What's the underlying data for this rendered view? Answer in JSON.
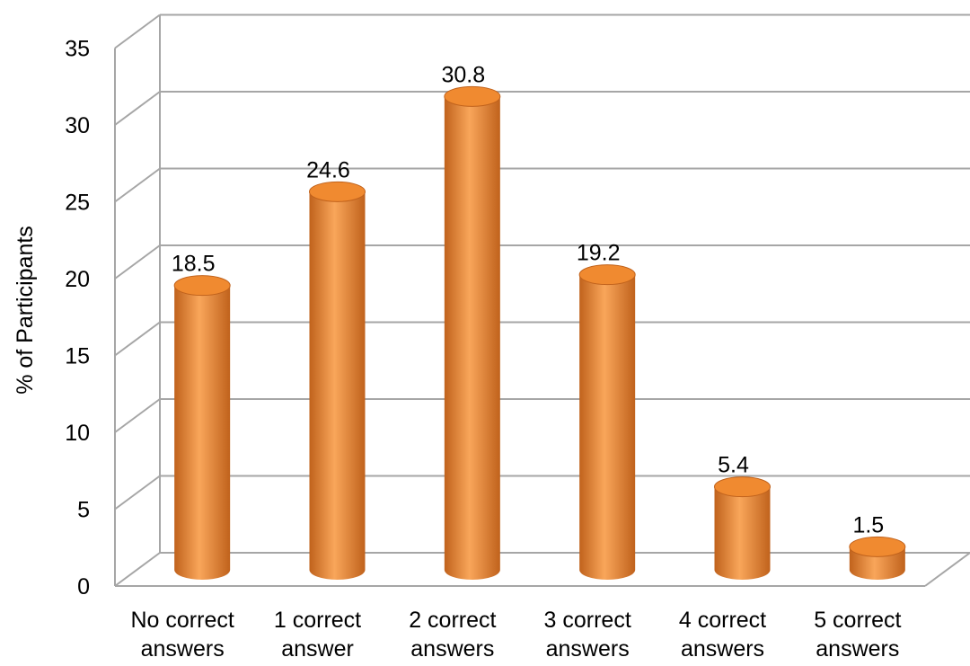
{
  "chart_data": {
    "type": "bar",
    "style": "3d-cylinder",
    "title": "",
    "xlabel": "",
    "ylabel": "% of Participants",
    "ylim": [
      0,
      35
    ],
    "yticks": [
      0,
      5,
      10,
      15,
      20,
      25,
      30,
      35
    ],
    "grid": true,
    "legend": "none",
    "categories": [
      [
        "No correct",
        "answers"
      ],
      [
        "1 correct",
        "answer"
      ],
      [
        "2 correct",
        "answers"
      ],
      [
        "3 correct",
        "answers"
      ],
      [
        "4 correct",
        "answers"
      ],
      [
        "5 correct",
        "answers"
      ]
    ],
    "values": [
      18.5,
      24.6,
      30.8,
      19.2,
      5.4,
      1.5
    ],
    "data_labels": [
      "18.5",
      "24.6",
      "30.8",
      "19.2",
      "5.4",
      "1.5"
    ],
    "colors": {
      "bar_light": "#f9a65a",
      "bar_mid": "#f08a30",
      "bar_dark": "#c0621c",
      "grid": "#a6a6a6"
    }
  }
}
